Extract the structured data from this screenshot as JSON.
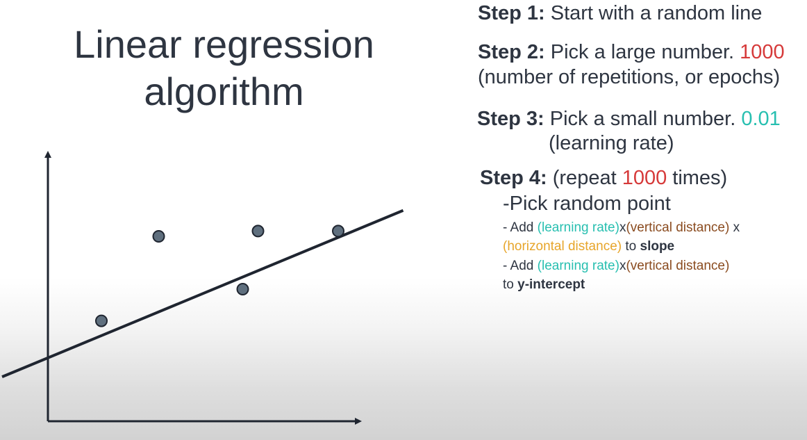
{
  "title": {
    "line1": "Linear regression",
    "line2": "algorithm"
  },
  "steps": {
    "step1": {
      "label": "Step 1:",
      "text": " Start with a random line"
    },
    "step2": {
      "label": "Step 2:",
      "text": " Pick a large number. ",
      "value": "1000",
      "line2": "(number of repetitions, or epochs)"
    },
    "step3": {
      "label": "Step 3:",
      "text": " Pick a small number.  ",
      "value": "0.01",
      "line2": "(learning rate)"
    },
    "step4": {
      "label": "Step 4:",
      "text_a": " (repeat ",
      "value": "1000",
      "text_b": " times)",
      "sub1": "-Pick random point",
      "slope_rule": {
        "prefix": "- Add ",
        "lr": "(learning rate)",
        "x1": "x",
        "vd": "(vertical distance)",
        "x2": " x",
        "hd": "(horizontal distance)",
        "to": " to ",
        "target": "slope"
      },
      "intercept_rule": {
        "prefix": "- Add ",
        "lr": "(learning rate)",
        "x1": "x",
        "vd": "(vertical distance)",
        "to": "to ",
        "target": "y-intercept"
      }
    }
  },
  "colors": {
    "red": "#d63a3a",
    "teal": "#27bfb0",
    "brown": "#8a4b1f",
    "orange": "#e7a52a",
    "point_fill": "#5f6f7e"
  },
  "chart_data": {
    "type": "scatter",
    "title": "",
    "xlabel": "",
    "ylabel": "",
    "points": [
      {
        "x": 1.4,
        "y": 1.9
      },
      {
        "x": 2.9,
        "y": 3.5
      },
      {
        "x": 5.1,
        "y": 2.5
      },
      {
        "x": 5.5,
        "y": 3.6
      },
      {
        "x": 7.6,
        "y": 3.6
      }
    ],
    "line": {
      "slope": 0.3,
      "intercept": 1.2
    },
    "xlim": [
      0,
      8
    ],
    "ylim": [
      0,
      5
    ]
  }
}
